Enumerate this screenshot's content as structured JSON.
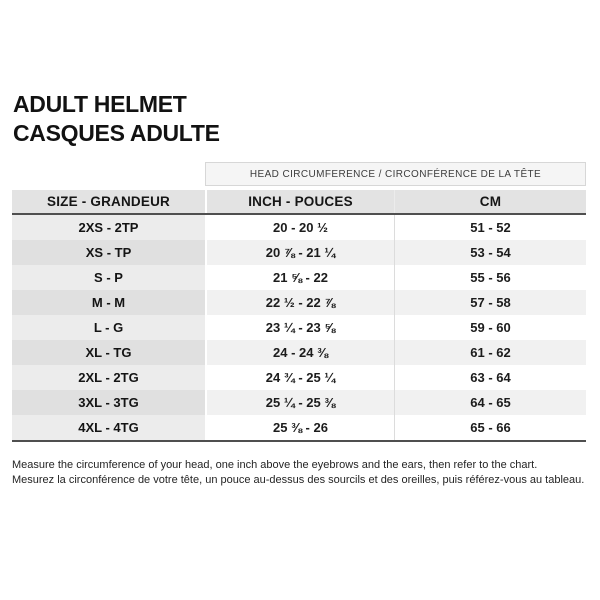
{
  "title": {
    "line1": "ADULT HELMET",
    "line2": "CASQUES ADULTE"
  },
  "table": {
    "span_header": "HEAD CIRCUMFERENCE / CIRCONFÉRENCE DE LA TÊTE",
    "columns": [
      "SIZE - GRANDEUR",
      "INCH - POUCES",
      "CM"
    ],
    "rows": [
      {
        "size": "2XS - 2TP",
        "inch": "20 - 20 ½",
        "cm": "51 - 52"
      },
      {
        "size": "XS - TP",
        "inch": "20 ⅞ - 21 ¼",
        "cm": "53 - 54"
      },
      {
        "size": "S - P",
        "inch": "21 ⅝ - 22",
        "cm": "55 - 56"
      },
      {
        "size": "M - M",
        "inch": "22 ½ - 22 ⅞",
        "cm": "57 - 58"
      },
      {
        "size": "L - G",
        "inch": "23 ¼ - 23 ⅝",
        "cm": "59 - 60"
      },
      {
        "size": "XL - TG",
        "inch": "24 - 24 ⅜",
        "cm": "61 - 62"
      },
      {
        "size": "2XL - 2TG",
        "inch": "24 ¾ - 25 ¼",
        "cm": "63 - 64"
      },
      {
        "size": "3XL - 3TG",
        "inch": "25 ¼ - 25 ⅜",
        "cm": "64 - 65"
      },
      {
        "size": "4XL - 4TG",
        "inch": "25 ⅜ - 26",
        "cm": "65 - 66"
      }
    ]
  },
  "footer": {
    "line1": "Measure the circumference of your head, one inch above the eyebrows and the ears, then refer to the chart.",
    "line2": "Mesurez la circonférence de votre tête, un pouce au-dessus des sourcils et des oreilles, puis référez-vous au tableau."
  },
  "colors": {
    "column_header_bg": "#e3e3e3",
    "span_header_bg": "#f5f5f5",
    "size_column_bg": "#ececec",
    "size_column_alt_bg": "#e0e0e0",
    "data_row_bg": "#ffffff",
    "data_row_alt_bg": "#f1f1f1",
    "heavy_rule": "#4f4f4f",
    "text": "#121212"
  }
}
